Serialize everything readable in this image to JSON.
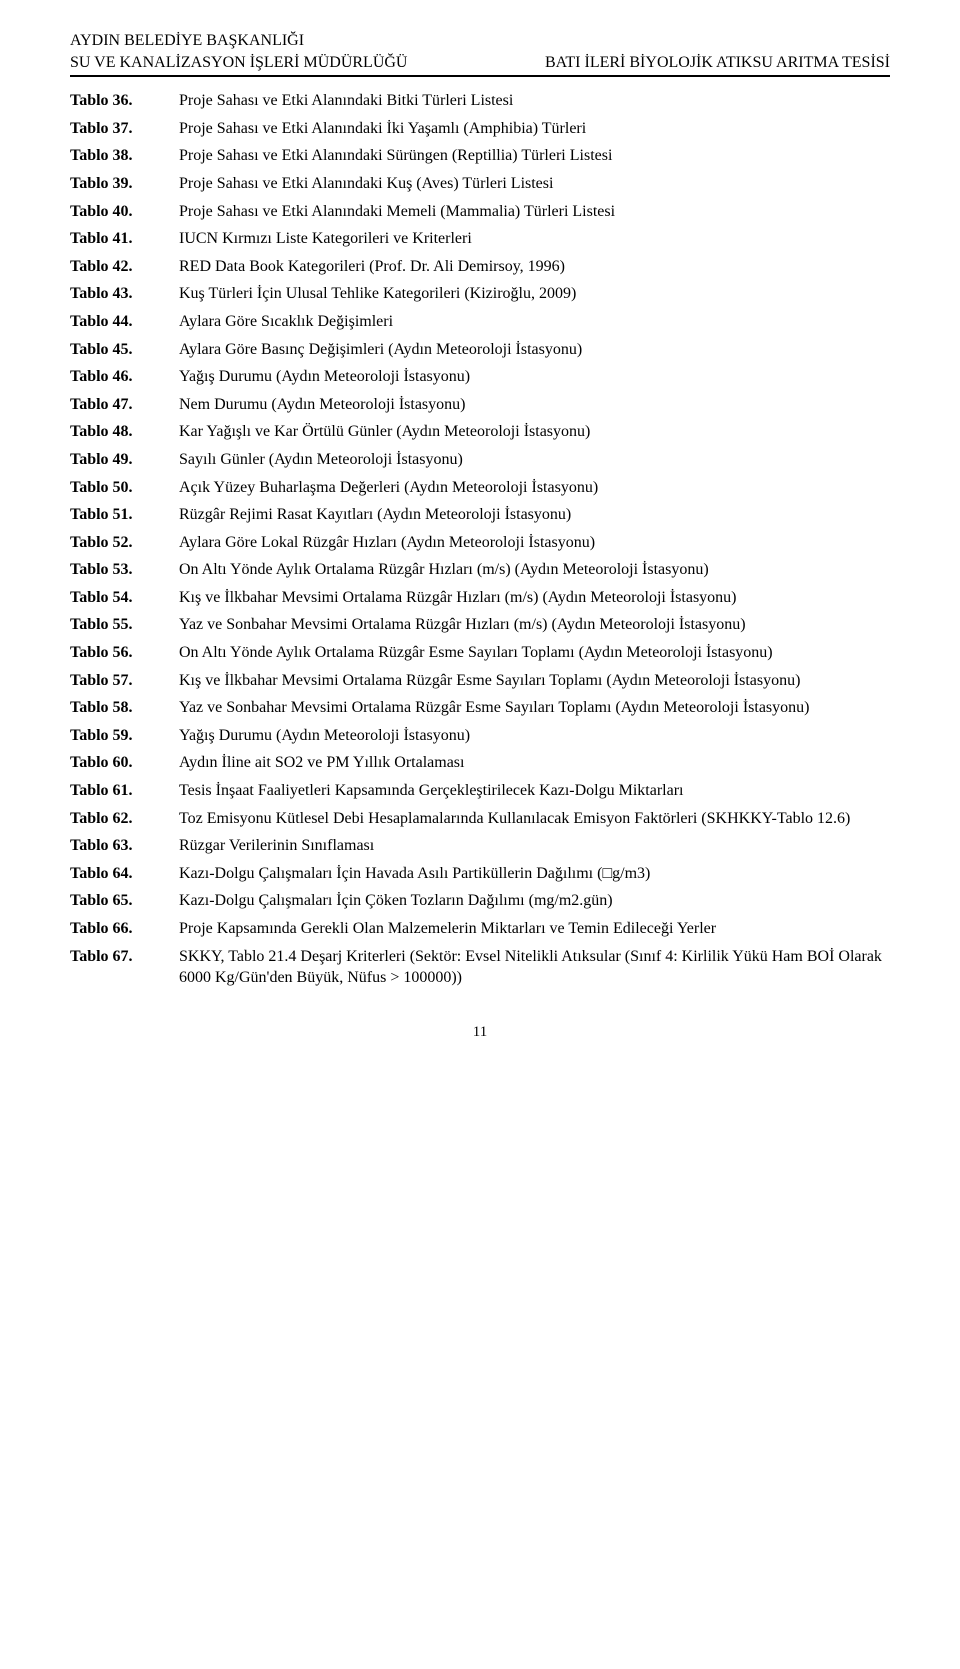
{
  "header": {
    "left1": "AYDIN BELEDİYE BAŞKANLIĞI",
    "left2": "SU VE KANALİZASYON İŞLERİ MÜDÜRLÜĞÜ",
    "right1": "BATI İLERİ BİYOLOJİK ATIKSU ARITMA TESİSİ"
  },
  "rows": [
    {
      "label": "Tablo 36.",
      "text": "Proje Sahası ve Etki Alanındaki Bitki Türleri Listesi"
    },
    {
      "label": "Tablo 37.",
      "text": "Proje Sahası ve Etki Alanındaki İki Yaşamlı (Amphibia) Türleri"
    },
    {
      "label": "Tablo 38.",
      "text": "Proje Sahası ve Etki Alanındaki Sürüngen (Reptillia) Türleri Listesi"
    },
    {
      "label": "Tablo 39.",
      "text": "Proje Sahası ve Etki Alanındaki Kuş (Aves) Türleri Listesi"
    },
    {
      "label": "Tablo 40.",
      "text": "Proje Sahası ve Etki Alanındaki Memeli (Mammalia) Türleri Listesi"
    },
    {
      "label": "Tablo 41.",
      "text": "IUCN Kırmızı Liste Kategorileri ve Kriterleri"
    },
    {
      "label": "Tablo 42.",
      "text": "RED Data Book Kategorileri (Prof. Dr. Ali Demirsoy, 1996)"
    },
    {
      "label": "Tablo 43.",
      "text": "Kuş Türleri İçin Ulusal Tehlike Kategorileri (Kiziroğlu, 2009)"
    },
    {
      "label": "Tablo 44.",
      "text": "Aylara Göre Sıcaklık Değişimleri"
    },
    {
      "label": "Tablo 45.",
      "text": "Aylara Göre Basınç Değişimleri (Aydın Meteoroloji İstasyonu)"
    },
    {
      "label": "Tablo 46.",
      "text": "Yağış Durumu (Aydın Meteoroloji İstasyonu)"
    },
    {
      "label": "Tablo 47.",
      "text": "Nem Durumu (Aydın Meteoroloji İstasyonu)"
    },
    {
      "label": "Tablo 48.",
      "text": "Kar Yağışlı ve Kar Örtülü Günler (Aydın Meteoroloji İstasyonu)"
    },
    {
      "label": "Tablo 49.",
      "text": "Sayılı Günler (Aydın Meteoroloji İstasyonu)"
    },
    {
      "label": "Tablo 50.",
      "text": "Açık Yüzey Buharlaşma Değerleri (Aydın Meteoroloji İstasyonu)"
    },
    {
      "label": "Tablo 51.",
      "text": "Rüzgâr Rejimi Rasat Kayıtları (Aydın Meteoroloji İstasyonu)"
    },
    {
      "label": "Tablo 52.",
      "text": "Aylara Göre Lokal Rüzgâr Hızları (Aydın Meteoroloji İstasyonu)"
    },
    {
      "label": "Tablo 53.",
      "text": "On Altı Yönde Aylık Ortalama Rüzgâr Hızları (m/s) (Aydın Meteoroloji İstasyonu)"
    },
    {
      "label": "Tablo 54.",
      "text": "Kış ve İlkbahar Mevsimi Ortalama Rüzgâr Hızları (m/s) (Aydın Meteoroloji İstasyonu)"
    },
    {
      "label": "Tablo 55.",
      "text": "Yaz ve Sonbahar Mevsimi Ortalama Rüzgâr Hızları (m/s) (Aydın Meteoroloji İstasyonu)"
    },
    {
      "label": "Tablo 56.",
      "text": "On Altı Yönde Aylık Ortalama Rüzgâr Esme Sayıları Toplamı (Aydın Meteoroloji İstasyonu)"
    },
    {
      "label": "Tablo 57.",
      "text": "Kış ve İlkbahar Mevsimi Ortalama Rüzgâr Esme Sayıları Toplamı (Aydın Meteoroloji İstasyonu)"
    },
    {
      "label": "Tablo 58.",
      "text": "Yaz ve Sonbahar Mevsimi Ortalama Rüzgâr Esme Sayıları Toplamı (Aydın Meteoroloji İstasyonu)"
    },
    {
      "label": "Tablo 59.",
      "text": "Yağış Durumu (Aydın Meteoroloji İstasyonu)"
    },
    {
      "label": "Tablo 60.",
      "text": "Aydın İline ait SO2 ve PM Yıllık Ortalaması"
    },
    {
      "label": "Tablo 61.",
      "text": "Tesis İnşaat Faaliyetleri Kapsamında Gerçekleştirilecek Kazı-Dolgu Miktarları"
    },
    {
      "label": "Tablo 62.",
      "text": "Toz Emisyonu Kütlesel Debi Hesaplamalarında Kullanılacak Emisyon Faktörleri (SKHKKY-Tablo 12.6)"
    },
    {
      "label": "Tablo 63.",
      "text": "Rüzgar Verilerinin Sınıflaması"
    },
    {
      "label": "Tablo 64.",
      "text": "Kazı-Dolgu Çalışmaları İçin Havada Asılı Partiküllerin Dağılımı (□g/m3)"
    },
    {
      "label": "Tablo 65.",
      "text": "Kazı-Dolgu Çalışmaları İçin Çöken Tozların Dağılımı (mg/m2.gün)"
    },
    {
      "label": "Tablo 66.",
      "text": "Proje Kapsamında Gerekli Olan Malzemelerin Miktarları ve Temin Edileceği Yerler"
    },
    {
      "label": "Tablo 67.",
      "text": "SKKY, Tablo 21.4 Deşarj Kriterleri (Sektör: Evsel Nitelikli Atıksular (Sınıf 4: Kirlilik Yükü Ham BOİ Olarak 6000 Kg/Gün'den Büyük, Nüfus > 100000))"
    }
  ],
  "pageNumber": "11"
}
